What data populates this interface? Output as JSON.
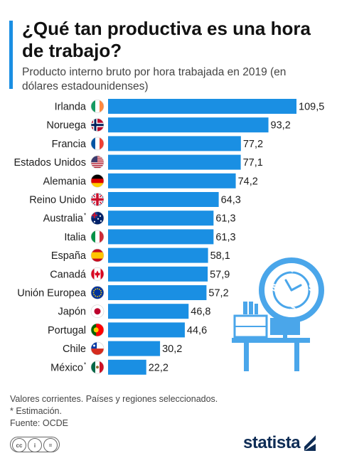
{
  "header": {
    "title": "¿Qué tan productiva es una hora de trabajo?",
    "subtitle": "Producto interno bruto por hora trabajada en 2019 (en dólares estadounidenses)"
  },
  "colors": {
    "bar": "#1a8fe3",
    "accent": "#1a8fe3",
    "illustration": "#4aa6ea",
    "brand": "#0e2c55"
  },
  "chart_data": {
    "type": "bar",
    "orientation": "horizontal",
    "categories": [
      "Irlanda",
      "Noruega",
      "Francia",
      "Estados Unidos",
      "Alemania",
      "Reino Unido",
      "Australia",
      "Italia",
      "España",
      "Canadá",
      "Unión Europea",
      "Japón",
      "Portugal",
      "Chile",
      "México"
    ],
    "superscripts": [
      "",
      "",
      "",
      "",
      "",
      "",
      "*",
      "",
      "",
      "",
      "",
      "",
      "",
      "",
      "*"
    ],
    "value_labels": [
      "109,5",
      "93,2",
      "77,2",
      "77,1",
      "74,2",
      "64,3",
      "61,3",
      "61,3",
      "58,1",
      "57,9",
      "57,2",
      "46,8",
      "44,6",
      "30,2",
      "22,2"
    ],
    "values": [
      109.5,
      93.2,
      77.2,
      77.1,
      74.2,
      64.3,
      61.3,
      61.3,
      58.1,
      57.9,
      57.2,
      46.8,
      44.6,
      30.2,
      22.2
    ],
    "flags": [
      "ireland-flag-icon",
      "norway-flag-icon",
      "france-flag-icon",
      "usa-flag-icon",
      "germany-flag-icon",
      "uk-flag-icon",
      "australia-flag-icon",
      "italy-flag-icon",
      "spain-flag-icon",
      "canada-flag-icon",
      "eu-flag-icon",
      "japan-flag-icon",
      "portugal-flag-icon",
      "chile-flag-icon",
      "mexico-flag-icon"
    ],
    "title": "¿Qué tan productiva es una hora de trabajo?",
    "xlabel": "",
    "ylabel": "",
    "xlim": [
      0,
      109.5
    ],
    "grid": false,
    "legend": "none"
  },
  "footer": {
    "note1": "Valores corrientes. Países y regiones seleccionados.",
    "note2": "* Estimación.",
    "source": "Fuente: OCDE"
  },
  "license": {
    "cc": "cc",
    "by": "i",
    "nd": "="
  },
  "brand": {
    "name": "statista"
  }
}
